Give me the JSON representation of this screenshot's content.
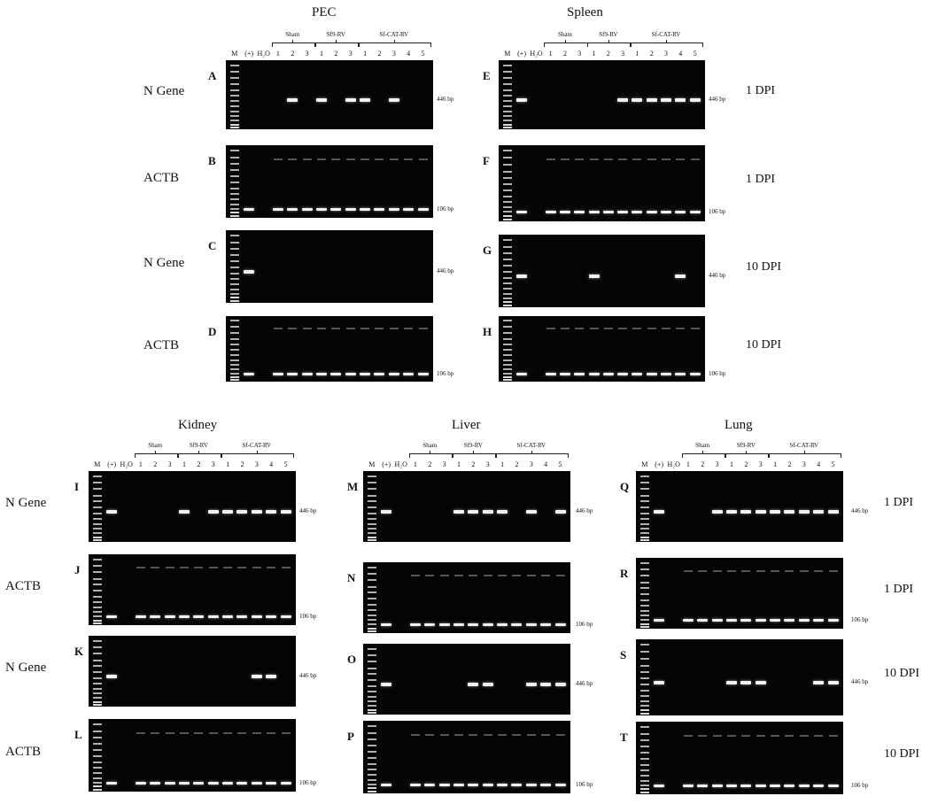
{
  "columns": {
    "pec": "PEC",
    "spleen": "Spleen",
    "kidney": "Kidney",
    "liver": "Liver",
    "lung": "Lung"
  },
  "groups": {
    "sham": "Sham",
    "sf9": "Sf9-RV",
    "sfcat": "Sf-CAT-RV"
  },
  "lanes": {
    "marker": "M",
    "positive": "(+)",
    "water": "H₂O",
    "n1": "1",
    "n2": "2",
    "n3": "3",
    "n4": "4",
    "n5": "5"
  },
  "row_labels": {
    "n_gene": "N Gene",
    "actb": "ACTB"
  },
  "timepoints": {
    "d1": "1 DPI",
    "d10": "10 DPI"
  },
  "band_sizes": {
    "n_gene": "446 bp",
    "actb": "106 bp"
  },
  "panels": [
    {
      "letter": "A",
      "target": "N Gene",
      "timepoint": "1 DPI",
      "bands": "0001010110100"
    },
    {
      "letter": "B",
      "target": "ACTB",
      "timepoint": "1 DPI",
      "bands": "1011111111111"
    },
    {
      "letter": "C",
      "target": "N Gene",
      "timepoint": "10 DPI",
      "bands": "1000000000000"
    },
    {
      "letter": "D",
      "target": "ACTB",
      "timepoint": "10 DPI",
      "bands": "1011111111111"
    },
    {
      "letter": "E",
      "target": "N Gene",
      "timepoint": "1 DPI",
      "bands": "1000000111111"
    },
    {
      "letter": "F",
      "target": "ACTB",
      "timepoint": "1 DPI",
      "bands": "1011111111111"
    },
    {
      "letter": "G",
      "target": "N Gene",
      "timepoint": "10 DPI",
      "bands": "1000010000010"
    },
    {
      "letter": "H",
      "target": "ACTB",
      "timepoint": "10 DPI",
      "bands": "1011111111111"
    },
    {
      "letter": "I",
      "target": "N Gene",
      "timepoint": "1 DPI",
      "bands": "1000010111111"
    },
    {
      "letter": "J",
      "target": "ACTB",
      "timepoint": "1 DPI",
      "bands": "1011111111111"
    },
    {
      "letter": "K",
      "target": "N Gene",
      "timepoint": "10 DPI",
      "bands": "1000000000110"
    },
    {
      "letter": "L",
      "target": "ACTB",
      "timepoint": "10 DPI",
      "bands": "1011111111111"
    },
    {
      "letter": "M",
      "target": "N Gene",
      "timepoint": "1 DPI",
      "bands": "1000011110101"
    },
    {
      "letter": "N",
      "target": "ACTB",
      "timepoint": "1 DPI",
      "bands": "1011111111111"
    },
    {
      "letter": "O",
      "target": "N Gene",
      "timepoint": "10 DPI",
      "bands": "1000001100111"
    },
    {
      "letter": "P",
      "target": "ACTB",
      "timepoint": "10 DPI",
      "bands": "1011111111111"
    },
    {
      "letter": "Q",
      "target": "N Gene",
      "timepoint": "1 DPI",
      "bands": "1000111111111"
    },
    {
      "letter": "R",
      "target": "ACTB",
      "timepoint": "1 DPI",
      "bands": "1011111111111"
    },
    {
      "letter": "S",
      "target": "N Gene",
      "timepoint": "10 DPI",
      "bands": "1000011100011"
    },
    {
      "letter": "T",
      "target": "ACTB",
      "timepoint": "10 DPI",
      "bands": "1011111111111"
    }
  ]
}
